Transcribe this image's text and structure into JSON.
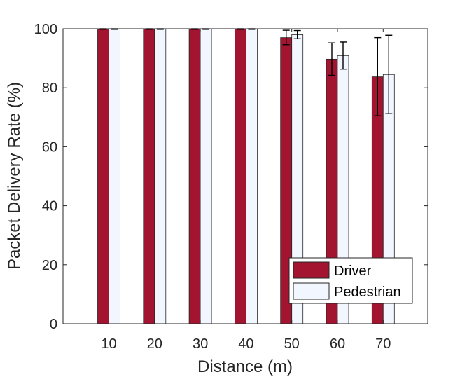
{
  "chart_data": {
    "type": "bar",
    "xlabel": "Distance (m)",
    "ylabel": "Packet Delivery Rate (%)",
    "categories": [
      "10",
      "20",
      "30",
      "40",
      "50",
      "60",
      "70"
    ],
    "ylim": [
      0,
      100
    ],
    "yticks": [
      "0",
      "20",
      "40",
      "60",
      "80",
      "100"
    ],
    "grid": false,
    "legend_position": "bottom-right",
    "series": [
      {
        "name": "Driver",
        "color": "#A2142F",
        "values": [
          100,
          100,
          100,
          100,
          97,
          89.7,
          83.7
        ],
        "err_low": [
          99.8,
          99.8,
          99.8,
          99.8,
          94.6,
          84.2,
          70.5
        ],
        "err_high": [
          100,
          100,
          100,
          100,
          99.5,
          95.2,
          97.0
        ]
      },
      {
        "name": "Pedestrian",
        "color": "#F2F6FF",
        "values": [
          100,
          100,
          100,
          100,
          98,
          90.9,
          84.5
        ],
        "err_low": [
          99.8,
          99.8,
          99.8,
          99.8,
          96.6,
          86.3,
          71.2
        ],
        "err_high": [
          100,
          100,
          100,
          100,
          99.4,
          95.5,
          97.8
        ]
      }
    ]
  }
}
